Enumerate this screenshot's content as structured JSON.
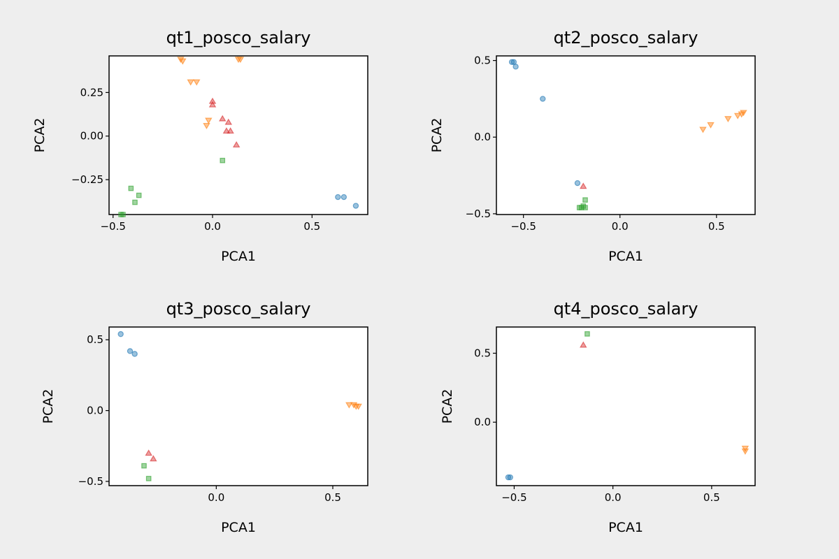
{
  "figure": {
    "background": "#eeeeee"
  },
  "colors": {
    "circle": "#1f77b4",
    "triangle_down": "#ff7f0e",
    "square": "#2ca02c",
    "triangle_up": "#d62728"
  },
  "chart_data": [
    {
      "type": "scatter",
      "title": "qt1_posco_salary",
      "xlabel": "PCA1",
      "ylabel": "PCA2",
      "xlim": [
        -0.52,
        0.78
      ],
      "ylim": [
        -0.45,
        0.46
      ],
      "xticks": [
        -0.5,
        0.0,
        0.5
      ],
      "xtick_labels": [
        "−0.5",
        "0.0",
        "0.5"
      ],
      "yticks": [
        -0.25,
        0.0,
        0.25
      ],
      "ytick_labels": [
        "−0.25",
        "0.00",
        "0.25"
      ],
      "grid": false,
      "series": [
        {
          "marker": "circle",
          "color": "#1f77b4",
          "points": [
            [
              0.63,
              -0.35
            ],
            [
              0.66,
              -0.35
            ],
            [
              0.72,
              -0.4
            ]
          ]
        },
        {
          "marker": "triangle_down",
          "color": "#ff7f0e",
          "points": [
            [
              -0.16,
              0.44
            ],
            [
              -0.15,
              0.43
            ],
            [
              0.13,
              0.44
            ],
            [
              0.14,
              0.44
            ],
            [
              -0.11,
              0.31
            ],
            [
              -0.08,
              0.31
            ],
            [
              -0.02,
              0.09
            ],
            [
              -0.03,
              0.06
            ]
          ]
        },
        {
          "marker": "square",
          "color": "#2ca02c",
          "points": [
            [
              0.05,
              -0.14
            ],
            [
              -0.41,
              -0.3
            ],
            [
              -0.37,
              -0.34
            ],
            [
              -0.39,
              -0.38
            ],
            [
              -0.46,
              -0.45
            ],
            [
              -0.45,
              -0.45
            ]
          ]
        },
        {
          "marker": "triangle_up",
          "color": "#d62728",
          "points": [
            [
              0.0,
              0.2
            ],
            [
              0.0,
              0.18
            ],
            [
              0.05,
              0.1
            ],
            [
              0.08,
              0.08
            ],
            [
              0.07,
              0.03
            ],
            [
              0.09,
              0.03
            ],
            [
              0.12,
              -0.05
            ]
          ]
        }
      ]
    },
    {
      "type": "scatter",
      "title": "qt2_posco_salary",
      "xlabel": "PCA1",
      "ylabel": "PCA2",
      "xlim": [
        -0.64,
        0.7
      ],
      "ylim": [
        -0.505,
        0.53
      ],
      "xticks": [
        -0.5,
        0.0,
        0.5
      ],
      "xtick_labels": [
        "−0.5",
        "0.0",
        "0.5"
      ],
      "yticks": [
        -0.5,
        0.0,
        0.5
      ],
      "ytick_labels": [
        "−0.5",
        "0.0",
        "0.5"
      ],
      "grid": false,
      "series": [
        {
          "marker": "circle",
          "color": "#1f77b4",
          "points": [
            [
              -0.56,
              0.49
            ],
            [
              -0.55,
              0.49
            ],
            [
              -0.54,
              0.46
            ],
            [
              -0.4,
              0.25
            ],
            [
              -0.22,
              -0.3
            ]
          ]
        },
        {
          "marker": "triangle_down",
          "color": "#ff7f0e",
          "points": [
            [
              0.43,
              0.05
            ],
            [
              0.47,
              0.08
            ],
            [
              0.56,
              0.12
            ],
            [
              0.61,
              0.14
            ],
            [
              0.63,
              0.15
            ],
            [
              0.64,
              0.16
            ]
          ]
        },
        {
          "marker": "square",
          "color": "#2ca02c",
          "points": [
            [
              -0.18,
              -0.41
            ],
            [
              -0.19,
              -0.45
            ],
            [
              -0.18,
              -0.46
            ],
            [
              -0.2,
              -0.46
            ],
            [
              -0.21,
              -0.46
            ]
          ]
        },
        {
          "marker": "triangle_up",
          "color": "#d62728",
          "points": [
            [
              -0.19,
              -0.32
            ]
          ]
        }
      ]
    },
    {
      "type": "scatter",
      "title": "qt3_posco_salary",
      "xlabel": "PCA1",
      "ylabel": "PCA2",
      "xlim": [
        -0.46,
        0.65
      ],
      "ylim": [
        -0.53,
        0.59
      ],
      "xticks": [
        0.0,
        0.5
      ],
      "xtick_labels": [
        "0.0",
        "0.5"
      ],
      "yticks": [
        -0.5,
        0.0,
        0.5
      ],
      "ytick_labels": [
        "−0.5",
        "0.0",
        "0.5"
      ],
      "grid": false,
      "series": [
        {
          "marker": "circle",
          "color": "#1f77b4",
          "points": [
            [
              -0.41,
              0.54
            ],
            [
              -0.37,
              0.42
            ],
            [
              -0.35,
              0.4
            ]
          ]
        },
        {
          "marker": "triangle_down",
          "color": "#ff7f0e",
          "points": [
            [
              0.57,
              0.04
            ],
            [
              0.59,
              0.04
            ],
            [
              0.6,
              0.03
            ],
            [
              0.61,
              0.03
            ]
          ]
        },
        {
          "marker": "square",
          "color": "#2ca02c",
          "points": [
            [
              -0.31,
              -0.39
            ],
            [
              -0.29,
              -0.48
            ]
          ]
        },
        {
          "marker": "triangle_up",
          "color": "#d62728",
          "points": [
            [
              -0.29,
              -0.3
            ],
            [
              -0.27,
              -0.34
            ]
          ]
        }
      ]
    },
    {
      "type": "scatter",
      "title": "qt4_posco_salary",
      "xlabel": "PCA1",
      "ylabel": "PCA2",
      "xlim": [
        -0.59,
        0.72
      ],
      "ylim": [
        -0.46,
        0.69
      ],
      "xticks": [
        -0.5,
        0.0,
        0.5
      ],
      "xtick_labels": [
        "−0.5",
        "0.0",
        "0.5"
      ],
      "yticks": [
        0.0,
        0.5
      ],
      "ytick_labels": [
        "0.0",
        "0.5"
      ],
      "grid": false,
      "series": [
        {
          "marker": "circle",
          "color": "#1f77b4",
          "points": [
            [
              -0.53,
              -0.4
            ],
            [
              -0.52,
              -0.4
            ]
          ]
        },
        {
          "marker": "triangle_down",
          "color": "#ff7f0e",
          "points": [
            [
              0.67,
              -0.19
            ],
            [
              0.67,
              -0.21
            ]
          ]
        },
        {
          "marker": "square",
          "color": "#2ca02c",
          "points": [
            [
              -0.13,
              0.64
            ]
          ]
        },
        {
          "marker": "triangle_up",
          "color": "#d62728",
          "points": [
            [
              -0.15,
              0.56
            ]
          ]
        }
      ]
    }
  ]
}
